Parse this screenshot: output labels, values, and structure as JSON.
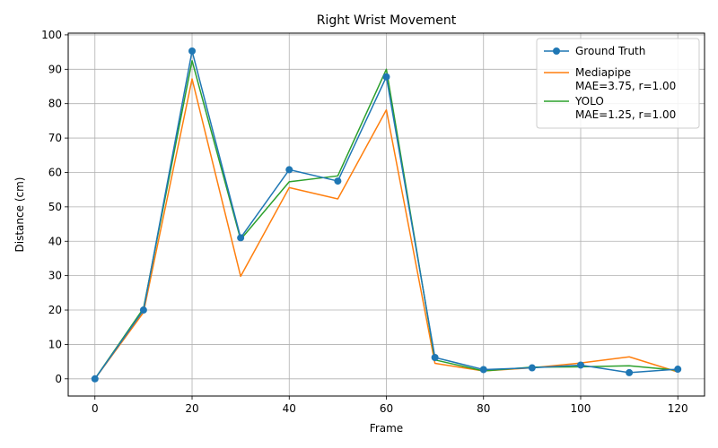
{
  "chart_data": {
    "type": "line",
    "title": "Right Wrist Movement",
    "xlabel": "Frame",
    "ylabel": "Distance (cm)",
    "xlim": [
      -5.5,
      125.5
    ],
    "ylim": [
      -5,
      100.5
    ],
    "xticks": [
      0,
      20,
      40,
      60,
      80,
      100,
      120
    ],
    "yticks": [
      0,
      10,
      20,
      30,
      40,
      50,
      60,
      70,
      80,
      90,
      100
    ],
    "grid": true,
    "legend_position": "upper right",
    "x": [
      0,
      10,
      20,
      30,
      40,
      50,
      60,
      70,
      80,
      90,
      100,
      110,
      120
    ],
    "series": [
      {
        "name": "Ground Truth",
        "color": "#1f77b4",
        "marker": "circle",
        "values": [
          0,
          20.0,
          95.3,
          41.0,
          60.8,
          57.5,
          87.8,
          6.2,
          2.7,
          3.2,
          4.0,
          1.8,
          2.8
        ]
      },
      {
        "name": "Mediapipe",
        "subtitle": "MAE=3.75, r=1.00",
        "color": "#ff7f0e",
        "marker": "none",
        "values": [
          0,
          19.3,
          87.2,
          29.8,
          55.6,
          52.3,
          78.2,
          4.5,
          2.3,
          3.2,
          4.6,
          6.4,
          2.0
        ]
      },
      {
        "name": "YOLO",
        "subtitle": "MAE=1.25, r=1.00",
        "color": "#2ca02c",
        "marker": "none",
        "values": [
          0,
          20.5,
          92.5,
          40.5,
          57.3,
          59.0,
          90.0,
          5.5,
          2.3,
          3.4,
          3.5,
          3.8,
          2.5
        ]
      }
    ]
  }
}
